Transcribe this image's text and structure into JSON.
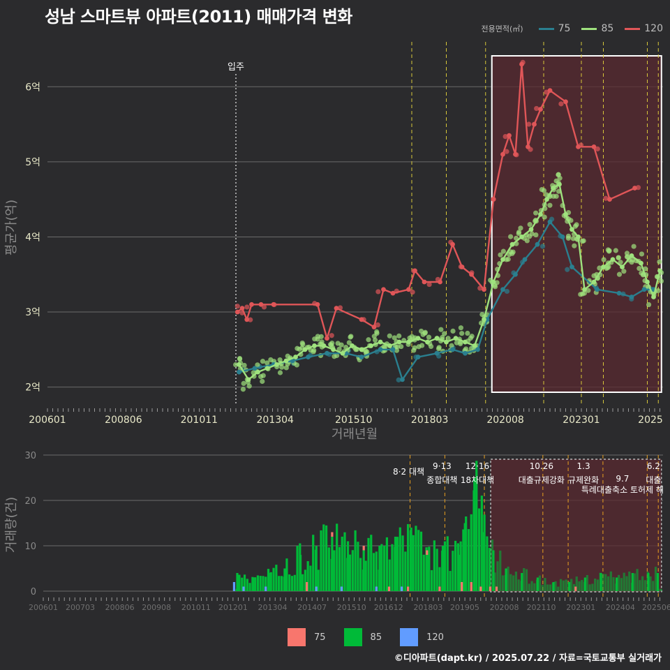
{
  "title": "성남 스마트뷰 아파트(2011) 매매가격 변화",
  "footer": "©디아파트(dapt.kr) / 2025.07.22 / 자료=국토교통부 실거래가",
  "legend": {
    "title": "전용면적(㎡)",
    "items": [
      {
        "label": "75",
        "color": "#2a7f8f"
      },
      {
        "label": "85",
        "color": "#9fe27e"
      },
      {
        "label": "120",
        "color": "#e05658"
      }
    ]
  },
  "bar_legend": [
    {
      "label": "75",
      "color": "#f8766d"
    },
    {
      "label": "85",
      "color": "#00ba38"
    },
    {
      "label": "120",
      "color": "#619cff"
    }
  ],
  "annotations": {
    "move_in": "입주",
    "policies": [
      {
        "date": "8·2",
        "text": "8·2 대책"
      },
      {
        "date": "9·13",
        "text": "종합대책"
      },
      {
        "date": "12·16",
        "text": "18차대책"
      },
      {
        "date": "10.26",
        "text": "대출규제강화"
      },
      {
        "date": "1.3",
        "text": "규제완화"
      },
      {
        "date": "9.7",
        "text": "특례대출축소 토허제 해"
      },
      {
        "date": "6.2",
        "text": "대출"
      }
    ]
  },
  "chart_data": [
    {
      "type": "line",
      "title": "성남 스마트뷰 아파트(2011) 매매가격 변화",
      "xlabel": "거래년월",
      "ylabel": "평균가(억)",
      "x_tick_labels": [
        "200601",
        "200806",
        "201011",
        "201304",
        "201510",
        "201803",
        "202008",
        "202301",
        "2025"
      ],
      "y_tick_labels": [
        "2억",
        "3억",
        "4억",
        "5억",
        "6억"
      ],
      "xlim": [
        2006.0,
        2025.6
      ],
      "ylim": [
        1.75,
        6.6
      ],
      "series": [
        {
          "name": "75",
          "color": "#2a7f8f",
          "x": [
            2012.1,
            2012.6,
            2013.2,
            2013.8,
            2014.3,
            2014.9,
            2015.5,
            2016.0,
            2016.6,
            2017.0,
            2017.3,
            2017.8,
            2018.4,
            2018.9,
            2019.3,
            2019.7,
            2020.0,
            2020.5,
            2020.9,
            2021.2,
            2021.6,
            2022.0,
            2022.4,
            2022.7,
            2023.5,
            2024.2,
            2024.6,
            2025.0,
            2025.3
          ],
          "y": [
            2.2,
            2.25,
            2.3,
            2.35,
            2.4,
            2.45,
            2.45,
            2.4,
            2.5,
            2.5,
            2.1,
            2.4,
            2.45,
            2.5,
            2.45,
            2.5,
            2.9,
            3.3,
            3.5,
            3.7,
            3.9,
            4.2,
            4.0,
            3.6,
            3.3,
            3.25,
            3.2,
            3.3,
            3.3
          ]
        },
        {
          "name": "85",
          "color": "#9fe27e",
          "x": [
            2012.1,
            2012.4,
            2012.7,
            2013.0,
            2013.3,
            2013.6,
            2013.9,
            2014.2,
            2014.5,
            2014.8,
            2015.1,
            2015.4,
            2015.7,
            2016.0,
            2016.3,
            2016.6,
            2016.9,
            2017.2,
            2017.5,
            2017.8,
            2018.1,
            2018.4,
            2018.7,
            2019.0,
            2019.3,
            2019.6,
            2019.9,
            2020.2,
            2020.5,
            2020.8,
            2021.1,
            2021.4,
            2021.7,
            2021.9,
            2022.1,
            2022.3,
            2022.5,
            2022.7,
            2022.9,
            2023.1,
            2023.4,
            2023.7,
            2024.0,
            2024.3,
            2024.6,
            2024.9,
            2025.1,
            2025.3,
            2025.5
          ],
          "y": [
            2.3,
            2.1,
            2.2,
            2.25,
            2.3,
            2.35,
            2.4,
            2.5,
            2.55,
            2.55,
            2.5,
            2.45,
            2.55,
            2.5,
            2.55,
            2.6,
            2.55,
            2.6,
            2.6,
            2.65,
            2.6,
            2.65,
            2.6,
            2.65,
            2.6,
            2.55,
            2.9,
            3.4,
            3.7,
            3.9,
            4.0,
            4.1,
            4.3,
            4.5,
            4.65,
            4.7,
            4.3,
            4.1,
            4.0,
            3.3,
            3.4,
            3.6,
            3.7,
            3.6,
            3.75,
            3.65,
            3.4,
            3.2,
            3.55
          ]
        },
        {
          "name": "120",
          "color": "#e05658",
          "x": [
            2012.05,
            2012.2,
            2012.35,
            2012.5,
            2012.8,
            2013.2,
            2014.6,
            2014.9,
            2015.2,
            2016.0,
            2016.4,
            2016.7,
            2017.0,
            2017.5,
            2017.7,
            2018.0,
            2018.5,
            2018.9,
            2019.2,
            2019.5,
            2019.9,
            2020.2,
            2020.5,
            2020.7,
            2020.9,
            2021.1,
            2021.3,
            2021.5,
            2021.7,
            2022.0,
            2022.5,
            2022.9,
            2023.4,
            2023.9,
            2024.7
          ],
          "y": [
            3.0,
            3.05,
            2.9,
            3.1,
            3.1,
            3.1,
            3.1,
            2.65,
            3.05,
            2.9,
            2.8,
            3.3,
            3.25,
            3.3,
            3.55,
            3.4,
            3.4,
            3.9,
            3.6,
            3.5,
            3.3,
            4.5,
            5.1,
            5.35,
            5.1,
            6.3,
            5.2,
            5.5,
            5.7,
            5.95,
            5.8,
            5.2,
            5.2,
            4.5,
            4.65
          ]
        }
      ]
    },
    {
      "type": "bar",
      "title": "거래량",
      "xlabel": "",
      "ylabel": "거래량(건)",
      "x_tick_labels": [
        "200601",
        "200703",
        "200806",
        "200908",
        "201011",
        "201201",
        "201304",
        "201407",
        "201510",
        "201612",
        "201803",
        "201905",
        "202008",
        "202110",
        "202301",
        "202404",
        "202506"
      ],
      "y_tick_labels": [
        "0",
        "10",
        "20",
        "30"
      ],
      "ylim": [
        0,
        30
      ],
      "series": [
        {
          "name": "75",
          "x": [
            2014.3,
            2015.1,
            2016.1,
            2016.9,
            2017.5,
            2018.1,
            2018.5,
            2019.2,
            2019.5,
            2019.8,
            2020.1,
            2020.3,
            2022.8
          ],
          "values": [
            2,
            1,
            1,
            1,
            1,
            1,
            1,
            2,
            2,
            1,
            1,
            1,
            1
          ]
        },
        {
          "name": "85",
          "x": [
            2012.1,
            2012.6,
            2013.1,
            2013.6,
            2014.1,
            2014.6,
            2015.1,
            2015.6,
            2016.1,
            2016.6,
            2017.1,
            2017.6,
            2018.1,
            2018.6,
            2019.1,
            2019.3,
            2019.6,
            2019.9,
            2020.2,
            2020.6,
            2021.1,
            2021.6,
            2022.1,
            2022.6,
            2023.1,
            2023.6,
            2024.1,
            2024.6,
            2025.1,
            2025.4
          ],
          "values": [
            4,
            3,
            4,
            5,
            8,
            10,
            12,
            11,
            9,
            10,
            12,
            14,
            8,
            10,
            8,
            15,
            25,
            13,
            9,
            5,
            4,
            3,
            2,
            2,
            3,
            4,
            3,
            4,
            4,
            4
          ]
        },
        {
          "name": "120",
          "x": [
            2012.0,
            2012.3,
            2013.0,
            2014.6,
            2015.4,
            2016.5,
            2017.3
          ],
          "values": [
            2,
            1,
            1,
            1,
            1,
            1,
            1
          ]
        }
      ]
    }
  ]
}
